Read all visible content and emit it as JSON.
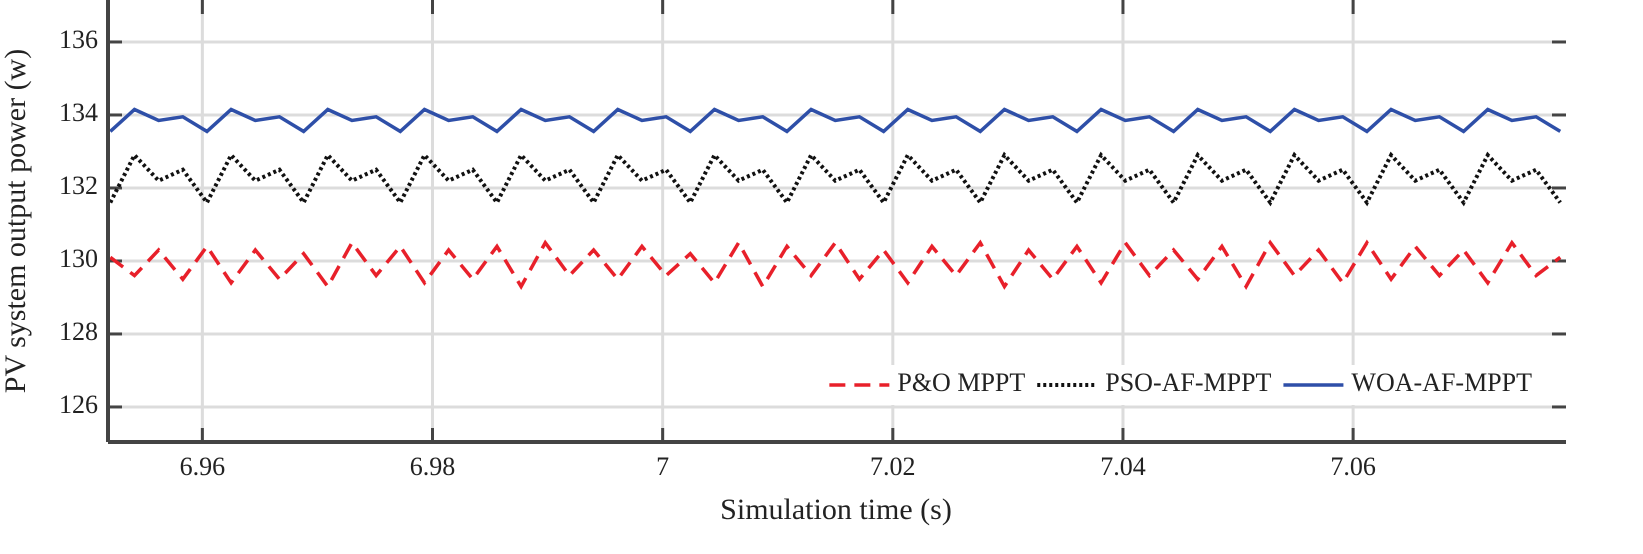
{
  "chart_data": {
    "type": "line",
    "xlabel": "Simulation time (s)",
    "ylabel": "PV system output power (w)",
    "x": [
      6.952,
      6.9541,
      6.9562,
      6.9583,
      6.9604,
      6.9625,
      6.9646,
      6.9667,
      6.9688,
      6.9709,
      6.973,
      6.9751,
      6.9772,
      6.9793,
      6.9814,
      6.9835,
      6.9856,
      6.9877,
      6.9898,
      6.9919,
      6.994,
      6.9961,
      6.9982,
      7.0003,
      7.0024,
      7.0045,
      7.0066,
      7.0087,
      7.0108,
      7.0129,
      7.015,
      7.0171,
      7.0192,
      7.0213,
      7.0234,
      7.0255,
      7.0276,
      7.0297,
      7.0318,
      7.0339,
      7.036,
      7.0381,
      7.0402,
      7.0423,
      7.0444,
      7.0465,
      7.0486,
      7.0507,
      7.0528,
      7.0549,
      7.057,
      7.0591,
      7.0612,
      7.0633,
      7.0654,
      7.0675,
      7.0696,
      7.0717,
      7.0738,
      7.0759,
      7.078
    ],
    "series": [
      {
        "name": "P&O MPPT",
        "color": "#e8202a",
        "style": "dashed",
        "values": [
          130.1,
          129.6,
          130.3,
          129.5,
          130.4,
          129.4,
          130.3,
          129.5,
          130.2,
          129.3,
          130.5,
          129.6,
          130.4,
          129.4,
          130.3,
          129.5,
          130.4,
          129.3,
          130.5,
          129.6,
          130.3,
          129.5,
          130.4,
          129.6,
          130.2,
          129.4,
          130.5,
          129.3,
          130.4,
          129.6,
          130.5,
          129.5,
          130.3,
          129.4,
          130.4,
          129.6,
          130.5,
          129.3,
          130.3,
          129.5,
          130.4,
          129.4,
          130.5,
          129.6,
          130.3,
          129.5,
          130.4,
          129.3,
          130.5,
          129.6,
          130.3,
          129.4,
          130.5,
          129.5,
          130.4,
          129.6,
          130.3,
          129.4,
          130.5,
          129.6,
          130.1
        ]
      },
      {
        "name": "PSO-AF-MPPT",
        "color": "#111111",
        "style": "dotted",
        "values": [
          131.6,
          132.9,
          132.2,
          132.5,
          131.6,
          132.9,
          132.2,
          132.5,
          131.6,
          132.9,
          132.2,
          132.5,
          131.6,
          132.9,
          132.2,
          132.5,
          131.6,
          132.9,
          132.2,
          132.5,
          131.6,
          132.9,
          132.2,
          132.5,
          131.6,
          132.9,
          132.2,
          132.5,
          131.6,
          132.9,
          132.2,
          132.5,
          131.6,
          132.9,
          132.2,
          132.5,
          131.6,
          132.9,
          132.2,
          132.5,
          131.6,
          132.9,
          132.2,
          132.5,
          131.6,
          132.9,
          132.2,
          132.5,
          131.6,
          132.9,
          132.2,
          132.5,
          131.6,
          132.9,
          132.2,
          132.5,
          131.6,
          132.9,
          132.2,
          132.5,
          131.6
        ]
      },
      {
        "name": "WOA-AF-MPPT",
        "color": "#2e4fa8",
        "style": "solid",
        "values": [
          133.55,
          134.15,
          133.85,
          133.95,
          133.55,
          134.15,
          133.85,
          133.95,
          133.55,
          134.15,
          133.85,
          133.95,
          133.55,
          134.15,
          133.85,
          133.95,
          133.55,
          134.15,
          133.85,
          133.95,
          133.55,
          134.15,
          133.85,
          133.95,
          133.55,
          134.15,
          133.85,
          133.95,
          133.55,
          134.15,
          133.85,
          133.95,
          133.55,
          134.15,
          133.85,
          133.95,
          133.55,
          134.15,
          133.85,
          133.95,
          133.55,
          134.15,
          133.85,
          133.95,
          133.55,
          134.15,
          133.85,
          133.95,
          133.55,
          134.15,
          133.85,
          133.95,
          133.55,
          134.15,
          133.85,
          133.95,
          133.55,
          134.15,
          133.85,
          133.95,
          133.55
        ]
      }
    ],
    "xlim": [
      6.9518,
      7.0785
    ],
    "ylim": [
      125.04,
      137.15
    ],
    "xticks": [
      6.96,
      6.98,
      7,
      7.02,
      7.04,
      7.06
    ],
    "yticks": [
      126,
      128,
      130,
      132,
      134,
      136
    ],
    "grid": true,
    "legend": "lower right"
  }
}
